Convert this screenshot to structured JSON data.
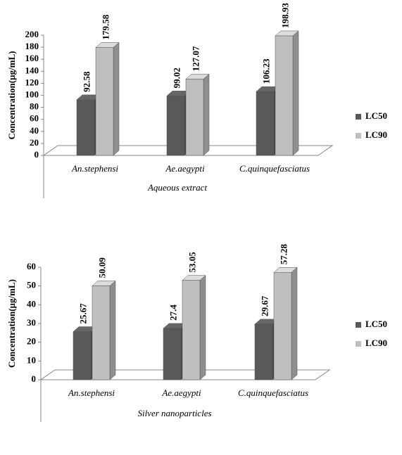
{
  "chart_data": [
    {
      "type": "bar3d",
      "y_label": "Concentration(µg/mL)",
      "x_label": "Aqueous extract",
      "categories": [
        "An.stephensi",
        "Ae.aegypti",
        "C.quinquefasciatus"
      ],
      "series": [
        {
          "name": "LC50",
          "color": "#595959",
          "values": [
            92.58,
            99.02,
            106.23
          ]
        },
        {
          "name": "LC90",
          "color": "#bfbfbf",
          "values": [
            179.58,
            127.07,
            198.93
          ]
        }
      ],
      "ylim": [
        0,
        200
      ],
      "yticks": [
        0,
        20,
        40,
        60,
        80,
        100,
        120,
        140,
        160,
        180,
        200
      ],
      "legend": "right"
    },
    {
      "type": "bar3d",
      "y_label": "Concentration(µg/mL)",
      "x_label": "Silver nanoparticles",
      "categories": [
        "An.stephensi",
        "Ae.aegypti",
        "C.quinquefasciatus"
      ],
      "series": [
        {
          "name": "LC50",
          "color": "#595959",
          "values": [
            25.67,
            27.4,
            29.67
          ]
        },
        {
          "name": "LC90",
          "color": "#bfbfbf",
          "values": [
            50.09,
            53.05,
            57.28
          ]
        }
      ],
      "ylim": [
        0,
        60
      ],
      "yticks": [
        0,
        10,
        20,
        30,
        40,
        50,
        60
      ],
      "legend": "right"
    }
  ]
}
